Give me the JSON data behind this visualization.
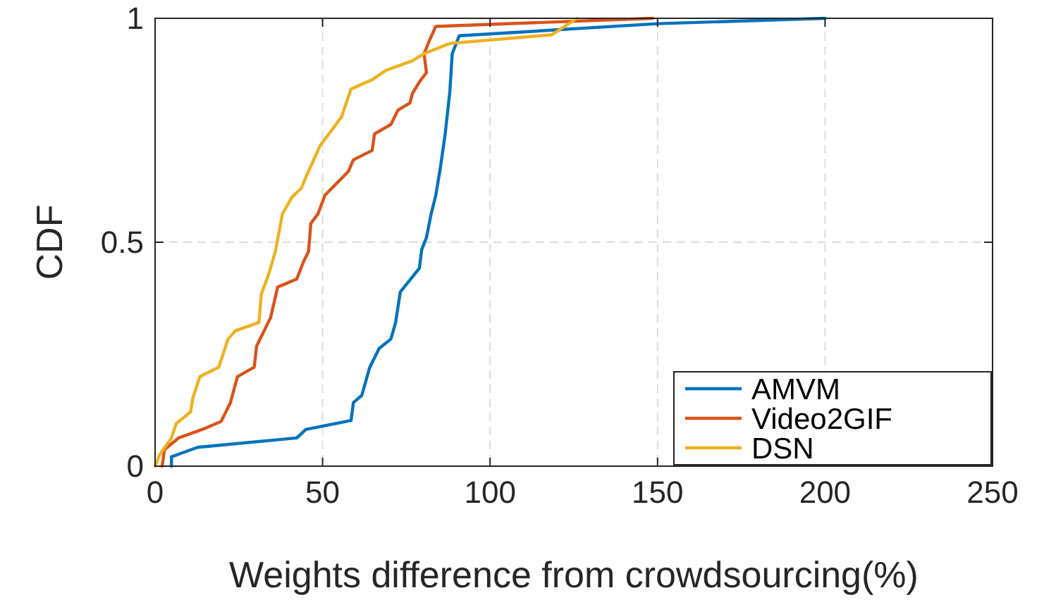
{
  "chart_data": {
    "type": "line",
    "xlabel": "Weights difference from crowdsourcing(%)",
    "ylabel": "CDF",
    "xlim": [
      0,
      250
    ],
    "ylim": [
      0,
      1
    ],
    "xticks": [
      0,
      50,
      100,
      150,
      200,
      250
    ],
    "yticks": [
      0,
      0.5,
      1
    ],
    "grid": true,
    "legend": "bottom right",
    "line_style": "solid",
    "marker": "none",
    "series": [
      {
        "name": "AMVM",
        "color": "#0072bd",
        "x": [
          4.9,
          4.9,
          12.7,
          42.3,
          45,
          58.5,
          59.2,
          61.7,
          64.1,
          66.9,
          70.4,
          71.8,
          73.2,
          78.9,
          79.6,
          81,
          82.4,
          83.8,
          85.2,
          86.6,
          88,
          88.7,
          90.8,
          150,
          200
        ],
        "values": [
          0,
          0.021,
          0.042,
          0.063,
          0.082,
          0.102,
          0.142,
          0.158,
          0.221,
          0.263,
          0.284,
          0.321,
          0.389,
          0.442,
          0.484,
          0.51,
          0.563,
          0.605,
          0.668,
          0.742,
          0.837,
          0.921,
          0.961,
          0.988,
          1
        ]
      },
      {
        "name": "Video2GIF",
        "color": "#d95319",
        "x": [
          2.1,
          2.8,
          7,
          14.8,
          19.7,
          22.5,
          24.6,
          29.6,
          30.3,
          34.5,
          36.6,
          42.3,
          44.4,
          45.8,
          46.5,
          48.6,
          50.7,
          57.7,
          59.2,
          64.8,
          65.5,
          70.4,
          72.5,
          76.1,
          76.8,
          78.9,
          81,
          80.3,
          81.7,
          83.8,
          148.6
        ],
        "values": [
          0,
          0.037,
          0.063,
          0.084,
          0.1,
          0.142,
          0.2,
          0.221,
          0.268,
          0.332,
          0.4,
          0.418,
          0.458,
          0.479,
          0.542,
          0.563,
          0.605,
          0.658,
          0.684,
          0.705,
          0.742,
          0.763,
          0.795,
          0.811,
          0.832,
          0.858,
          0.879,
          0.921,
          0.947,
          0.982,
          1
        ]
      },
      {
        "name": "DSN",
        "color": "#edb120",
        "x": [
          0,
          1.4,
          4.9,
          6.3,
          10.6,
          11.3,
          13.4,
          19,
          21.8,
          23.9,
          31,
          31.7,
          33.8,
          35.9,
          38,
          40.8,
          43.7,
          45.1,
          49.3,
          55.6,
          58.5,
          64.8,
          69,
          76.8,
          80.3,
          88,
          118.3,
          126
        ],
        "values": [
          0,
          0.026,
          0.063,
          0.095,
          0.121,
          0.153,
          0.2,
          0.221,
          0.284,
          0.302,
          0.321,
          0.384,
          0.426,
          0.479,
          0.563,
          0.6,
          0.621,
          0.647,
          0.716,
          0.779,
          0.842,
          0.863,
          0.884,
          0.905,
          0.921,
          0.944,
          0.963,
          1
        ]
      }
    ]
  }
}
